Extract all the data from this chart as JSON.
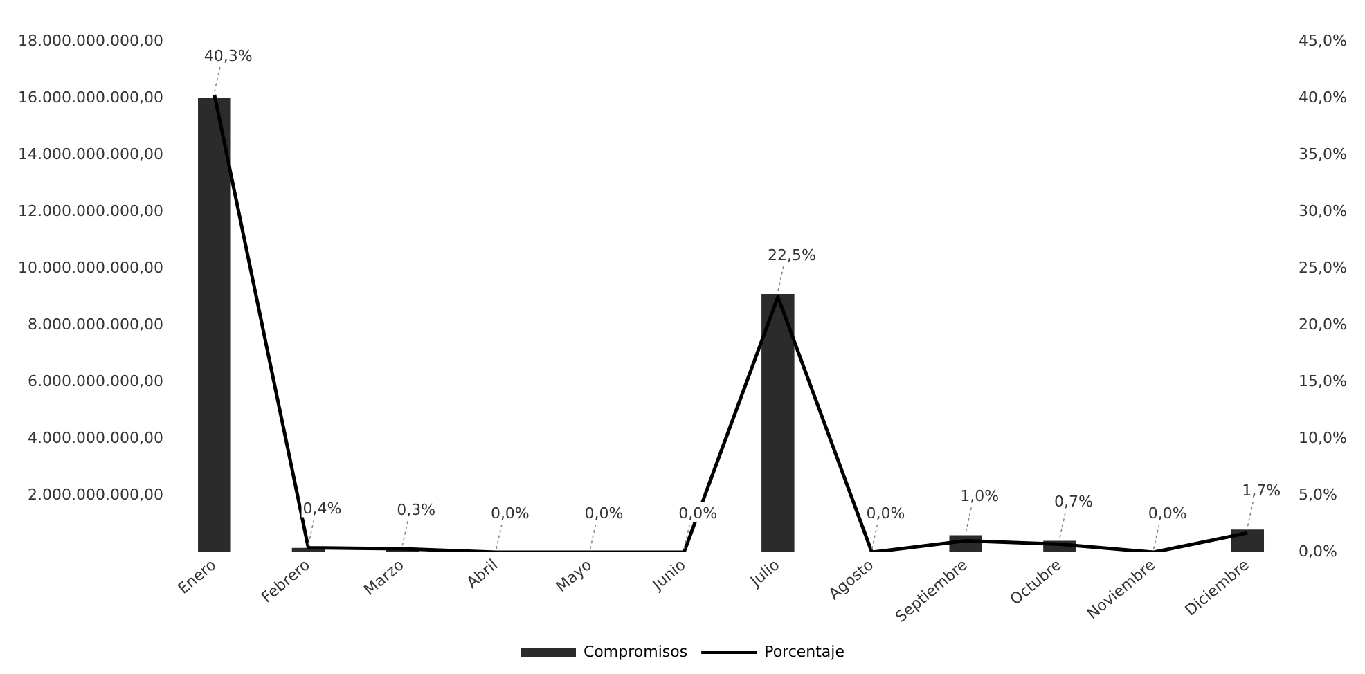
{
  "chart_data": {
    "type": "bar",
    "categories": [
      "Enero",
      "Febrero",
      "Marzo",
      "Abril",
      "Mayo",
      "Junio",
      "Julio",
      "Agosto",
      "Septiembre",
      "Octubre",
      "Noviembre",
      "Diciembre"
    ],
    "series": [
      {
        "name": "Compromisos",
        "type": "bar",
        "color": "#2b2b2b",
        "values": [
          16000000000,
          150000000,
          100000000,
          0,
          0,
          0,
          9100000000,
          0,
          600000000,
          400000000,
          0,
          800000000
        ]
      },
      {
        "name": "Porcentaje",
        "type": "line",
        "axis": "y2",
        "color": "#000000",
        "values": [
          40.3,
          0.4,
          0.3,
          0.0,
          0.0,
          0.0,
          22.5,
          0.0,
          1.0,
          0.7,
          0.0,
          1.7
        ],
        "value_labels": [
          "40,3%",
          "0,4%",
          "0,3%",
          "0,0%",
          "0,0%",
          "0,0%",
          "22,5%",
          "0,0%",
          "1,0%",
          "0,7%",
          "0,0%",
          "1,7%"
        ]
      }
    ],
    "ylim": [
      0,
      18000000000
    ],
    "yticks": [
      {
        "value": 2000000000,
        "label": "2.000.000.000,00"
      },
      {
        "value": 4000000000,
        "label": "4.000.000.000,00"
      },
      {
        "value": 6000000000,
        "label": "6.000.000.000,00"
      },
      {
        "value": 8000000000,
        "label": "8.000.000.000,00"
      },
      {
        "value": 10000000000,
        "label": "10.000.000.000,00"
      },
      {
        "value": 12000000000,
        "label": "12.000.000.000,00"
      },
      {
        "value": 14000000000,
        "label": "14.000.000.000,00"
      },
      {
        "value": 16000000000,
        "label": "16.000.000.000,00"
      },
      {
        "value": 18000000000,
        "label": "18.000.000.000,00"
      }
    ],
    "y2lim": [
      0,
      45
    ],
    "y2ticks": [
      {
        "value": 0,
        "label": "0,0%"
      },
      {
        "value": 5,
        "label": "5,0%"
      },
      {
        "value": 10,
        "label": "10,0%"
      },
      {
        "value": 15,
        "label": "15,0%"
      },
      {
        "value": 20,
        "label": "20,0%"
      },
      {
        "value": 25,
        "label": "25,0%"
      },
      {
        "value": 30,
        "label": "30,0%"
      },
      {
        "value": 35,
        "label": "35,0%"
      },
      {
        "value": 40,
        "label": "40,0%"
      },
      {
        "value": 45,
        "label": "45,0%"
      }
    ],
    "grid": false,
    "legend": "bottom",
    "marker": "none",
    "line_style": "solid"
  }
}
